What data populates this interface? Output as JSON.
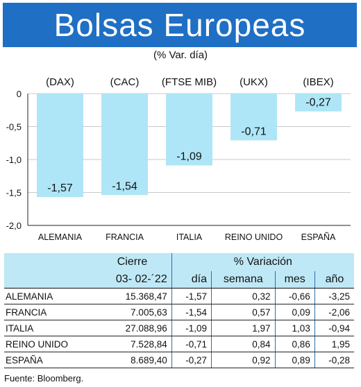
{
  "header": {
    "title": "Bolsas Europeas",
    "subtitle": "(% Var. día)"
  },
  "chart_data": {
    "type": "bar",
    "indices": [
      "(DAX)",
      "(CAC)",
      "(FTSE MIB)",
      "(UKX)",
      "(IBEX)"
    ],
    "categories": [
      "ALEMANIA",
      "FRANCIA",
      "ITALIA",
      "REINO UNIDO",
      "ESPAÑA"
    ],
    "values": [
      -1.57,
      -1.54,
      -1.09,
      -0.71,
      -0.27
    ],
    "value_labels": [
      "-1,57",
      "-1,54",
      "-1,09",
      "-0,71",
      "-0,27"
    ],
    "ylim": [
      -2.0,
      0
    ],
    "yticks": [
      0,
      -0.5,
      -1.0,
      -1.5,
      -2.0
    ],
    "ytick_labels": [
      "0",
      "-0,5",
      "-1,0",
      "-1,5",
      "-2,0"
    ],
    "bar_color": "#aee6f7",
    "grid": true
  },
  "table": {
    "group_headers": [
      "Cierre",
      "% Variación"
    ],
    "columns": [
      "03- 02-´22",
      "día",
      "semana",
      "mes",
      "año"
    ],
    "rows": [
      {
        "name": "ALEMANIA",
        "cierre": "15.368,47",
        "dia": "-1,57",
        "semana": "0,32",
        "mes": "-0,66",
        "ano": "-3,25"
      },
      {
        "name": "FRANCIA",
        "cierre": "7.005,63",
        "dia": "-1,54",
        "semana": "0,57",
        "mes": "0,09",
        "ano": "-2,06"
      },
      {
        "name": "ITALIA",
        "cierre": "27.088,96",
        "dia": "-1,09",
        "semana": "1,97",
        "mes": "1,03",
        "ano": "-0,94"
      },
      {
        "name": "REINO UNIDO",
        "cierre": "7.528,84",
        "dia": "-0,71",
        "semana": "0,84",
        "mes": "0,86",
        "ano": "1,95"
      },
      {
        "name": "ESPAÑA",
        "cierre": "8.689,40",
        "dia": "-0,27",
        "semana": "0,92",
        "mes": "0,89",
        "ano": "-0,28"
      }
    ]
  },
  "source": "Fuente: Bloomberg.",
  "colors": {
    "header_bg": "#1f6fc4",
    "table_header_bg": "#bfe8f6"
  }
}
